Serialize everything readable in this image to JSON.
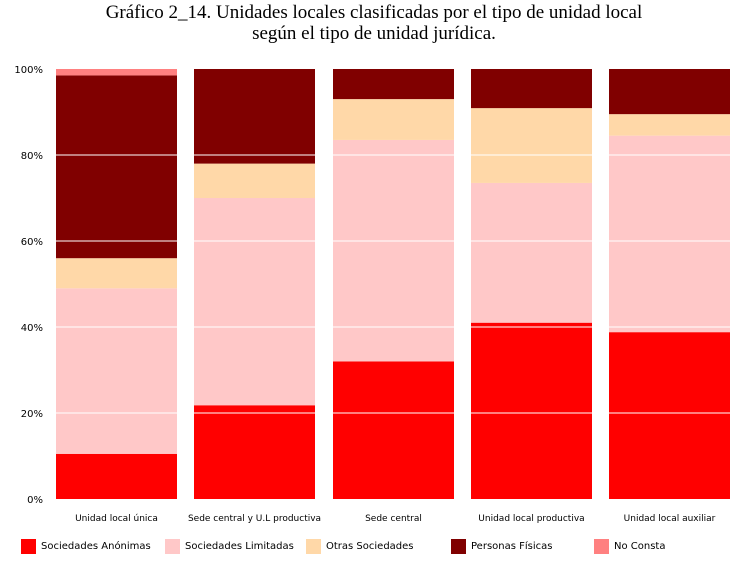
{
  "title_line1": "Gráfico 2_14. Unidades locales clasificadas por el tipo de unidad local",
  "title_line2": "según el tipo de unidad jurídica.",
  "chart_data": {
    "type": "bar",
    "stacked": true,
    "percent": true,
    "categories": [
      "Unidad local única",
      "Sede central y U.L productiva",
      "Sede central",
      "Unidad local productiva",
      "Unidad local auxiliar"
    ],
    "series": [
      {
        "name": "Sociedades Anónimas",
        "color": "#ff0000",
        "values": [
          10.5,
          21.8,
          32.0,
          41.0,
          38.8
        ]
      },
      {
        "name": "Sociedades Limitadas",
        "color": "#ffc8c8",
        "values": [
          38.5,
          48.2,
          51.5,
          32.5,
          45.7
        ]
      },
      {
        "name": "Otras Sociedades",
        "color": "#ffd8a8",
        "values": [
          7.0,
          8.0,
          9.5,
          17.4,
          5.0
        ]
      },
      {
        "name": "Personas Físicas",
        "color": "#800000",
        "values": [
          42.5,
          22.0,
          7.0,
          9.1,
          10.5
        ]
      },
      {
        "name": "No Consta",
        "color": "#ff8080",
        "values": [
          1.5,
          0.0,
          0.0,
          0.0,
          0.0
        ]
      }
    ],
    "yticks": [
      "0%",
      "20%",
      "40%",
      "60%",
      "80%",
      "100%"
    ],
    "ylim": [
      0,
      100
    ],
    "grid": true,
    "legend_position": "bottom"
  }
}
